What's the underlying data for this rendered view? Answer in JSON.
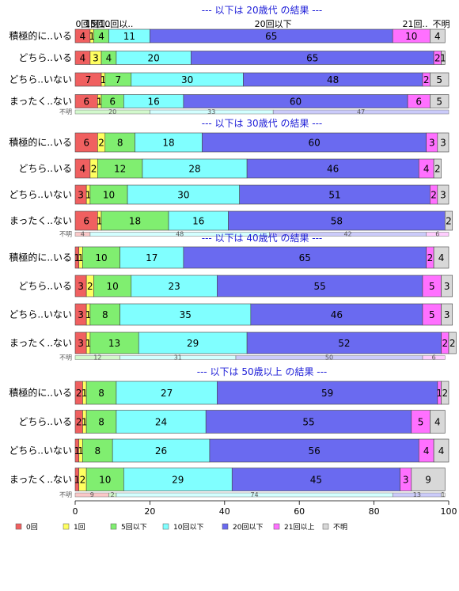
{
  "chart_data": {
    "type": "bar",
    "orientation": "horizontal",
    "stacked": true,
    "xlim": [
      0,
      100
    ],
    "x_ticks": [
      "0",
      "20",
      "40",
      "60",
      "80",
      "100"
    ],
    "legend": {
      "position": "bottom-left",
      "items": [
        {
          "name": "0回",
          "color": "#f06060"
        },
        {
          "name": "1回",
          "color": "#ffff60"
        },
        {
          "name": "5回以下",
          "color": "#80ee70"
        },
        {
          "name": "10回以下",
          "color": "#80ffff"
        },
        {
          "name": "20回以下",
          "color": "#6a6af0"
        },
        {
          "name": "21回以上",
          "color": "#ff70ff"
        },
        {
          "name": "不明",
          "color": "#d8d8d8"
        }
      ]
    },
    "top_category_labels": [
      {
        "text": "0回",
        "at": 2
      },
      {
        "text": "1回",
        "at": 4.5
      },
      {
        "text": "5回..",
        "at": 6.8
      },
      {
        "text": "10回以..",
        "at": 11
      },
      {
        "text": "20回以下",
        "at": 53
      },
      {
        "text": "21回..",
        "at": 91
      },
      {
        "text": "不明",
        "at": 98
      }
    ],
    "unknown_row_label": "不明",
    "panels": [
      {
        "title": "--- 以下は 20歳代 の結果 ---",
        "rows": [
          {
            "label": "積極的に..いる",
            "values": [
              4,
              1,
              4,
              11,
              65,
              10,
              4
            ]
          },
          {
            "label": "どちら..いる",
            "values": [
              4,
              3,
              4,
              20,
              65,
              2,
              1
            ]
          },
          {
            "label": "どちら..いない",
            "values": [
              7,
              1,
              7,
              30,
              48,
              2,
              5
            ]
          },
          {
            "label": "まったく..ない",
            "values": [
              6,
              1,
              6,
              16,
              60,
              6,
              5
            ]
          }
        ],
        "unknown": [
          {
            "color": "#80ee70",
            "value": 20
          },
          {
            "color": "#80ffff",
            "value": 33
          },
          {
            "color": "#6a6af0",
            "value": 47
          }
        ]
      },
      {
        "title": "--- 以下は 30歳代 の結果 ---",
        "rows": [
          {
            "label": "積極的に..いる",
            "values": [
              6,
              2,
              8,
              18,
              60,
              3,
              3
            ]
          },
          {
            "label": "どちら..いる",
            "values": [
              4,
              2,
              12,
              28,
              46,
              4,
              2
            ]
          },
          {
            "label": "どちら..いない",
            "values": [
              3,
              1,
              10,
              30,
              51,
              2,
              3
            ]
          },
          {
            "label": "まったく..ない",
            "values": [
              6,
              1,
              18,
              16,
              58,
              0,
              2
            ]
          }
        ],
        "unknown": [
          {
            "color": "#f06060",
            "value": 4
          },
          {
            "color": "#80ffff",
            "value": 48
          },
          {
            "color": "#6a6af0",
            "value": 42
          },
          {
            "color": "#ff70ff",
            "value": 6
          }
        ]
      },
      {
        "title": "--- 以下は 40歳代 の結果 ---",
        "rows": [
          {
            "label": "積極的に..いる",
            "values": [
              1,
              1,
              10,
              17,
              65,
              2,
              4
            ]
          },
          {
            "label": "どちら..いる",
            "values": [
              3,
              2,
              10,
              23,
              55,
              5,
              3
            ]
          },
          {
            "label": "どちら..いない",
            "values": [
              3,
              1,
              8,
              35,
              46,
              5,
              3
            ]
          },
          {
            "label": "まったく..ない",
            "values": [
              3,
              1,
              13,
              29,
              52,
              2,
              2
            ]
          }
        ],
        "unknown": [
          {
            "color": "#80ee70",
            "value": 12
          },
          {
            "color": "#80ffff",
            "value": 31
          },
          {
            "color": "#6a6af0",
            "value": 50
          },
          {
            "color": "#ff70ff",
            "value": 6
          }
        ]
      },
      {
        "title": "--- 以下は 50歳以上 の結果 ---",
        "rows": [
          {
            "label": "積極的に..いる",
            "values": [
              2,
              1,
              8,
              27,
              59,
              1,
              2
            ]
          },
          {
            "label": "どちら..いる",
            "values": [
              2,
              1,
              8,
              24,
              55,
              5,
              4
            ]
          },
          {
            "label": "どちら..いない",
            "values": [
              1,
              1,
              8,
              26,
              56,
              4,
              4
            ]
          },
          {
            "label": "まったく..ない",
            "values": [
              1,
              2,
              10,
              29,
              45,
              3,
              9
            ]
          }
        ],
        "unknown": [
          {
            "color": "#f06060",
            "value": 9
          },
          {
            "color": "#80ee70",
            "value": 2
          },
          {
            "color": "#80ffff",
            "value": 74
          },
          {
            "color": "#6a6af0",
            "value": 13
          },
          {
            "color": "#d8d8d8",
            "value": 1
          }
        ]
      }
    ]
  }
}
